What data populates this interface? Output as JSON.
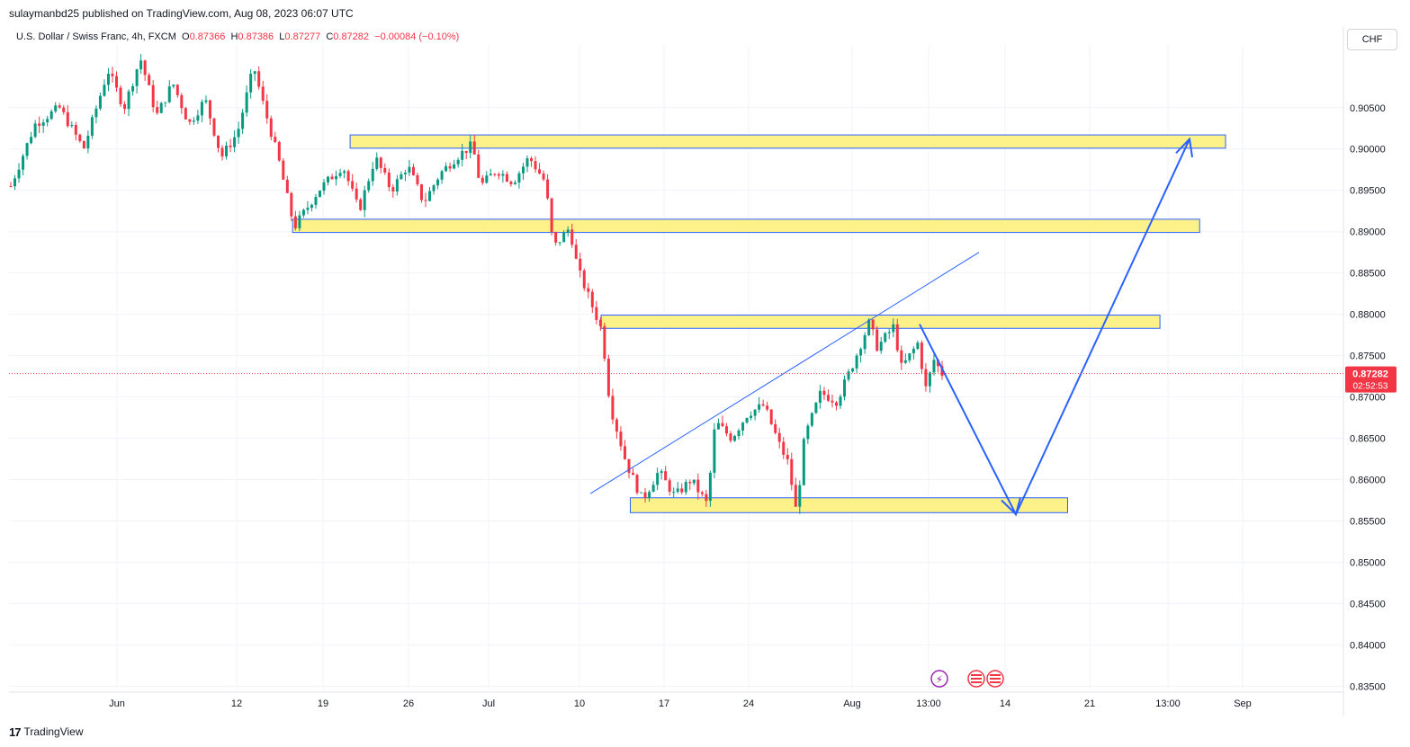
{
  "header": {
    "publisher_line": "sulaymanbd25 published on TradingView.com, Aug 08, 2023 06:07 UTC"
  },
  "legend": {
    "symbol": "U.S. Dollar / Swiss Franc, 4h, FXCM",
    "open_label": "O",
    "open": "0.87366",
    "high_label": "H",
    "high": "0.87386",
    "low_label": "L",
    "low": "0.87277",
    "close_label": "C",
    "close": "0.87282",
    "change": "−0.00084 (−0.10%)"
  },
  "currency_badge": "CHF",
  "last_price": {
    "price": "0.87282",
    "countdown": "02:52:53"
  },
  "footer": {
    "brand": "TradingView"
  },
  "colors": {
    "up": "#089981",
    "down": "#f23645",
    "zone_fill": "#fdf18a",
    "zone_border": "#2962ff",
    "line": "#2962ff",
    "price_badge": "#f23645"
  },
  "chart_data": {
    "type": "candlestick",
    "ylim": [
      0.8345,
      0.9115
    ],
    "y_ticks": [
      "0.90500",
      "0.90000",
      "0.89500",
      "0.89000",
      "0.88500",
      "0.88000",
      "0.87500",
      "0.87000",
      "0.86500",
      "0.86000",
      "0.85500",
      "0.85000",
      "0.84500",
      "0.84000",
      "0.83500"
    ],
    "x_ticks": [
      "Jun",
      "12",
      "19",
      "26",
      "Jul",
      "10",
      "17",
      "24",
      "Aug",
      "13:00",
      "14",
      "21",
      "13:00",
      "Sep"
    ],
    "price_path": [
      {
        "t": 0,
        "p": 0.8955
      },
      {
        "t": 3,
        "p": 0.903
      },
      {
        "t": 6,
        "p": 0.905
      },
      {
        "t": 9,
        "p": 0.9
      },
      {
        "t": 12,
        "p": 0.9095
      },
      {
        "t": 14,
        "p": 0.905
      },
      {
        "t": 16,
        "p": 0.911
      },
      {
        "t": 18,
        "p": 0.904
      },
      {
        "t": 20,
        "p": 0.908
      },
      {
        "t": 22,
        "p": 0.903
      },
      {
        "t": 24,
        "p": 0.906
      },
      {
        "t": 26,
        "p": 0.899
      },
      {
        "t": 28,
        "p": 0.902
      },
      {
        "t": 30,
        "p": 0.91
      },
      {
        "t": 31,
        "p": 0.906
      },
      {
        "t": 33,
        "p": 0.899
      },
      {
        "t": 35,
        "p": 0.8905
      },
      {
        "t": 38,
        "p": 0.895
      },
      {
        "t": 41,
        "p": 0.898
      },
      {
        "t": 43,
        "p": 0.8925
      },
      {
        "t": 45,
        "p": 0.899
      },
      {
        "t": 47,
        "p": 0.895
      },
      {
        "t": 49,
        "p": 0.898
      },
      {
        "t": 51,
        "p": 0.8935
      },
      {
        "t": 53,
        "p": 0.897
      },
      {
        "t": 55,
        "p": 0.899
      },
      {
        "t": 57,
        "p": 0.9005
      },
      {
        "t": 58,
        "p": 0.8955
      },
      {
        "t": 60,
        "p": 0.8975
      },
      {
        "t": 62,
        "p": 0.896
      },
      {
        "t": 64,
        "p": 0.899
      },
      {
        "t": 66,
        "p": 0.896
      },
      {
        "t": 67,
        "p": 0.888
      },
      {
        "t": 69,
        "p": 0.8905
      },
      {
        "t": 70,
        "p": 0.8855
      },
      {
        "t": 72,
        "p": 0.8805
      },
      {
        "t": 73,
        "p": 0.878
      },
      {
        "t": 74,
        "p": 0.869
      },
      {
        "t": 76,
        "p": 0.862
      },
      {
        "t": 78,
        "p": 0.8575
      },
      {
        "t": 80,
        "p": 0.861
      },
      {
        "t": 82,
        "p": 0.858
      },
      {
        "t": 84,
        "p": 0.86
      },
      {
        "t": 86,
        "p": 0.857
      },
      {
        "t": 87,
        "p": 0.867
      },
      {
        "t": 89,
        "p": 0.865
      },
      {
        "t": 91,
        "p": 0.868
      },
      {
        "t": 93,
        "p": 0.869
      },
      {
        "t": 95,
        "p": 0.864
      },
      {
        "t": 96,
        "p": 0.862
      },
      {
        "t": 97,
        "p": 0.856
      },
      {
        "t": 98,
        "p": 0.865
      },
      {
        "t": 100,
        "p": 0.8705
      },
      {
        "t": 102,
        "p": 0.8695
      },
      {
        "t": 104,
        "p": 0.874
      },
      {
        "t": 106,
        "p": 0.879
      },
      {
        "t": 107,
        "p": 0.876
      },
      {
        "t": 109,
        "p": 0.8785
      },
      {
        "t": 110,
        "p": 0.8735
      },
      {
        "t": 112,
        "p": 0.8765
      },
      {
        "t": 113,
        "p": 0.871
      },
      {
        "t": 114,
        "p": 0.8745
      },
      {
        "t": 115,
        "p": 0.8728
      }
    ]
  }
}
